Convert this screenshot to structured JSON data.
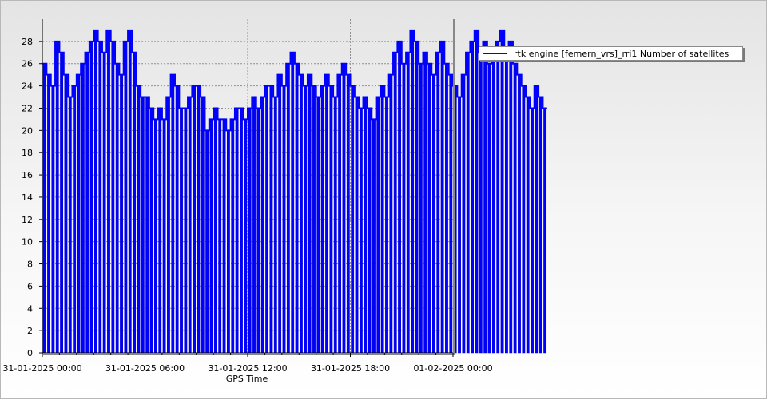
{
  "chart_data": {
    "type": "bar",
    "xlabel": "GPS Time",
    "ylabel": "",
    "ylim": [
      0,
      30
    ],
    "yticks": [
      0,
      2,
      4,
      6,
      8,
      10,
      12,
      14,
      16,
      18,
      20,
      22,
      24,
      26,
      28
    ],
    "xlim": [
      "31-01-2025 00:00",
      "01-02-2025 00:00"
    ],
    "xticks": [
      "31-01-2025 00:00",
      "31-01-2025 06:00",
      "31-01-2025 12:00",
      "31-01-2025 18:00",
      "01-02-2025 00:00"
    ],
    "grid": true,
    "legend_position": "top-right",
    "series": [
      {
        "name": "rtk engine [femern_vrs]_rri1 Number of satellites",
        "color": "#0000ff",
        "interval_minutes": 15,
        "start": "31-01-2025 00:15",
        "values": [
          26,
          25,
          24,
          28,
          27,
          25,
          23,
          24,
          25,
          26,
          27,
          28,
          29,
          28,
          27,
          29,
          28,
          26,
          25,
          28,
          29,
          27,
          24,
          23,
          23,
          22,
          21,
          22,
          21,
          23,
          25,
          24,
          22,
          22,
          23,
          24,
          24,
          23,
          20,
          21,
          22,
          21,
          21,
          20,
          21,
          22,
          22,
          21,
          22,
          23,
          22,
          23,
          24,
          24,
          23,
          25,
          24,
          26,
          27,
          26,
          25,
          24,
          25,
          24,
          23,
          24,
          25,
          24,
          23,
          25,
          26,
          25,
          24,
          23,
          22,
          23,
          22,
          21,
          23,
          24,
          23,
          25,
          27,
          28,
          26,
          27,
          29,
          28,
          26,
          27,
          26,
          25,
          27,
          28,
          26,
          25,
          24,
          23,
          25,
          27,
          28,
          29,
          27,
          28,
          26,
          27,
          28,
          29,
          27,
          28,
          26,
          25,
          24,
          23,
          22,
          24,
          23,
          22
        ]
      }
    ]
  }
}
